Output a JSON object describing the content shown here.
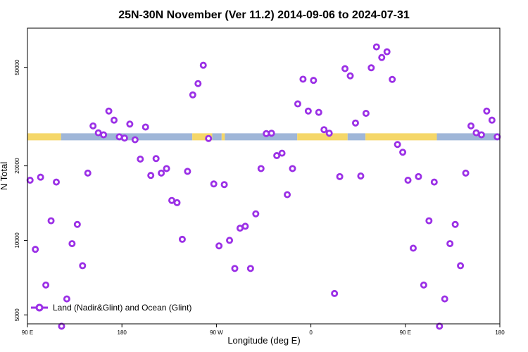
{
  "chart_data": {
    "type": "scatter",
    "title": "25N-30N November (Ver 11.2)   2014-09-06 to 2024-07-31",
    "xlabel": "Longitude (deg E)",
    "ylabel": "N Total",
    "y_scale": "log",
    "ylim": [
      4600,
      72000
    ],
    "xticks": [
      {
        "pos": 0,
        "label": "90 E"
      },
      {
        "pos": 90,
        "label": "180"
      },
      {
        "pos": 180,
        "label": "90 W"
      },
      {
        "pos": 270,
        "label": "0"
      },
      {
        "pos": 360,
        "label": "90 E"
      },
      {
        "pos": 450,
        "label": "180"
      }
    ],
    "xlim": [
      0,
      450
    ],
    "yticks": [
      {
        "value": 5000,
        "label": "5000"
      },
      {
        "value": 10000,
        "label": "10000"
      },
      {
        "value": 20000,
        "label": "20000"
      },
      {
        "value": 50000,
        "label": "50000"
      }
    ],
    "surface_strip": {
      "y_value": 26200,
      "colors": {
        "land": "#f5d769",
        "ocean": "#9fb6d8"
      },
      "segments": [
        {
          "type": "land",
          "x0": 0,
          "x1": 32
        },
        {
          "type": "ocean",
          "x0": 32,
          "x1": 157
        },
        {
          "type": "land",
          "x0": 157,
          "x1": 176
        },
        {
          "type": "ocean",
          "x0": 176,
          "x1": 185
        },
        {
          "type": "land",
          "x0": 185,
          "x1": 188
        },
        {
          "type": "ocean",
          "x0": 188,
          "x1": 257
        },
        {
          "type": "land",
          "x0": 257,
          "x1": 305
        },
        {
          "type": "ocean",
          "x0": 305,
          "x1": 322
        },
        {
          "type": "land",
          "x0": 322,
          "x1": 390
        },
        {
          "type": "ocean",
          "x0": 390,
          "x1": 450
        }
      ]
    },
    "series": [
      {
        "name": "Land (Nadir&Glint) and Ocean (Glint)",
        "color": "#9b30e6",
        "x": [
          2.5,
          7.5,
          12.5,
          17.5,
          22.5,
          27.5,
          32.5,
          37.5,
          42.5,
          47.5,
          52.5,
          57.5,
          62.5,
          67.5,
          72.5,
          77.5,
          82.5,
          87.5,
          92.5,
          97.5,
          102.5,
          107.5,
          112.5,
          117.5,
          122.5,
          127.5,
          132.5,
          137.5,
          142.5,
          147.5,
          152.5,
          157.5,
          162.5,
          167.5,
          172.5,
          177.5,
          182.5,
          187.5,
          192.5,
          197.5,
          202.5,
          207.5,
          212.5,
          217.5,
          222.5,
          227.5,
          232.5,
          237.5,
          242.5,
          247.5,
          252.5,
          257.5,
          262.5,
          267.5,
          272.5,
          277.5,
          282.5,
          287.5,
          292.5,
          297.5,
          302.5,
          307.5,
          312.5,
          317.5,
          322.5,
          327.5,
          332.5,
          337.5,
          342.5,
          347.5,
          352.5,
          357.5,
          362.5,
          367.5,
          372.5,
          377.5,
          382.5,
          387.5,
          392.5,
          397.5,
          402.5,
          407.5,
          412.5,
          417.5,
          422.5,
          427.5,
          432.5,
          437.5,
          442.5,
          447.5
        ],
        "y": [
          17500,
          9200,
          18000,
          6600,
          12000,
          17200,
          4500,
          5800,
          9700,
          11600,
          7900,
          18700,
          29000,
          27200,
          26700,
          33300,
          30600,
          26200,
          25900,
          29500,
          25500,
          21300,
          28700,
          18300,
          21400,
          18700,
          19500,
          14500,
          14200,
          10100,
          19000,
          38700,
          43000,
          51000,
          25800,
          16900,
          9500,
          16800,
          10000,
          7700,
          11200,
          11400,
          7700,
          12800,
          19500,
          27000,
          27100,
          22000,
          22500,
          15300,
          19500,
          35600,
          44800,
          33300,
          44300,
          32900,
          28000,
          27100,
          6100,
          18100,
          49400,
          46200,
          29800,
          18200,
          32600,
          49800,
          60500,
          54800,
          57800,
          44700,
          24400,
          22700,
          17500,
          9300,
          18100,
          6600,
          12000,
          17200,
          4500,
          5800,
          9700,
          11600,
          7900,
          18700,
          29000,
          27200,
          26700,
          33300,
          30600,
          26200
        ]
      }
    ],
    "legend": {
      "label": "Land (Nadir&Glint) and Ocean (Glint)",
      "position": "bottom-left"
    }
  }
}
